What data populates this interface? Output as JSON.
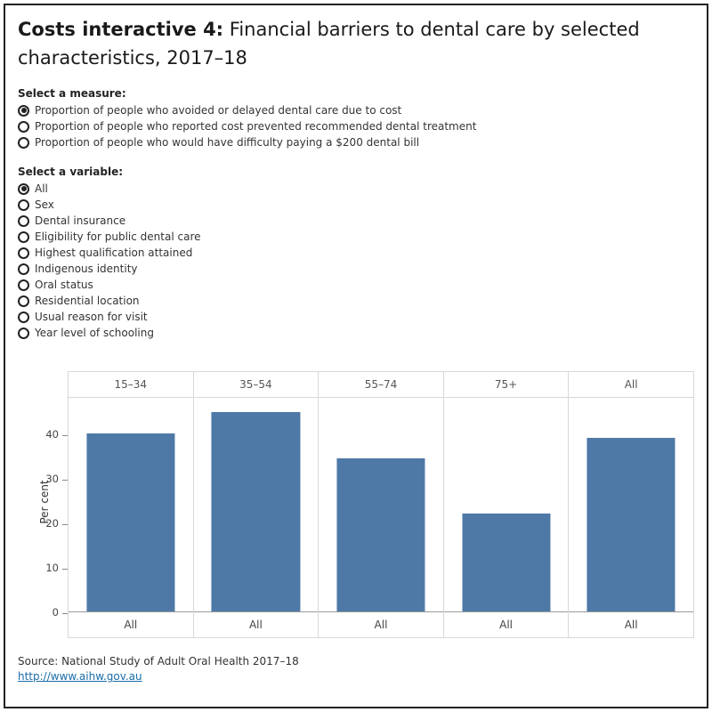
{
  "title": {
    "bold": "Costs interactive 4:",
    "rest": " Financial barriers to dental care by selected characteristics, 2017–18"
  },
  "measure": {
    "label": "Select a measure:",
    "selected_index": 0,
    "options": [
      "Proportion of people who avoided or delayed dental care due to cost",
      "Proportion of people who reported cost prevented recommended dental treatment",
      "Proportion of people who would have difficulty paying a $200 dental bill"
    ]
  },
  "variable": {
    "label": "Select a variable:",
    "selected_index": 0,
    "options": [
      "All",
      "Sex",
      "Dental insurance",
      "Eligibility for public dental care",
      "Highest qualification attained",
      "Indigenous identity",
      "Oral status",
      "Residential location",
      "Usual reason for visit",
      "Year level of schooling"
    ]
  },
  "chart_data": {
    "type": "bar",
    "categories": [
      "15–34",
      "35–54",
      "55–74",
      "75+",
      "All"
    ],
    "values": [
      40.1,
      44.9,
      34.5,
      22.0,
      39.0
    ],
    "bar_labels": [
      "All",
      "All",
      "All",
      "All",
      "All"
    ],
    "title": "",
    "xlabel": "",
    "ylabel": "Per cent",
    "ylim": [
      0,
      48
    ],
    "yticks": [
      0,
      10,
      20,
      30,
      40
    ],
    "bar_color": "#4e79a7",
    "grid": "off",
    "legend": "none"
  },
  "footer": {
    "source": "Source: National Study of Adult Oral Health 2017–18",
    "link": "http://www.aihw.gov.au",
    "link_color": "#1a6da8"
  }
}
